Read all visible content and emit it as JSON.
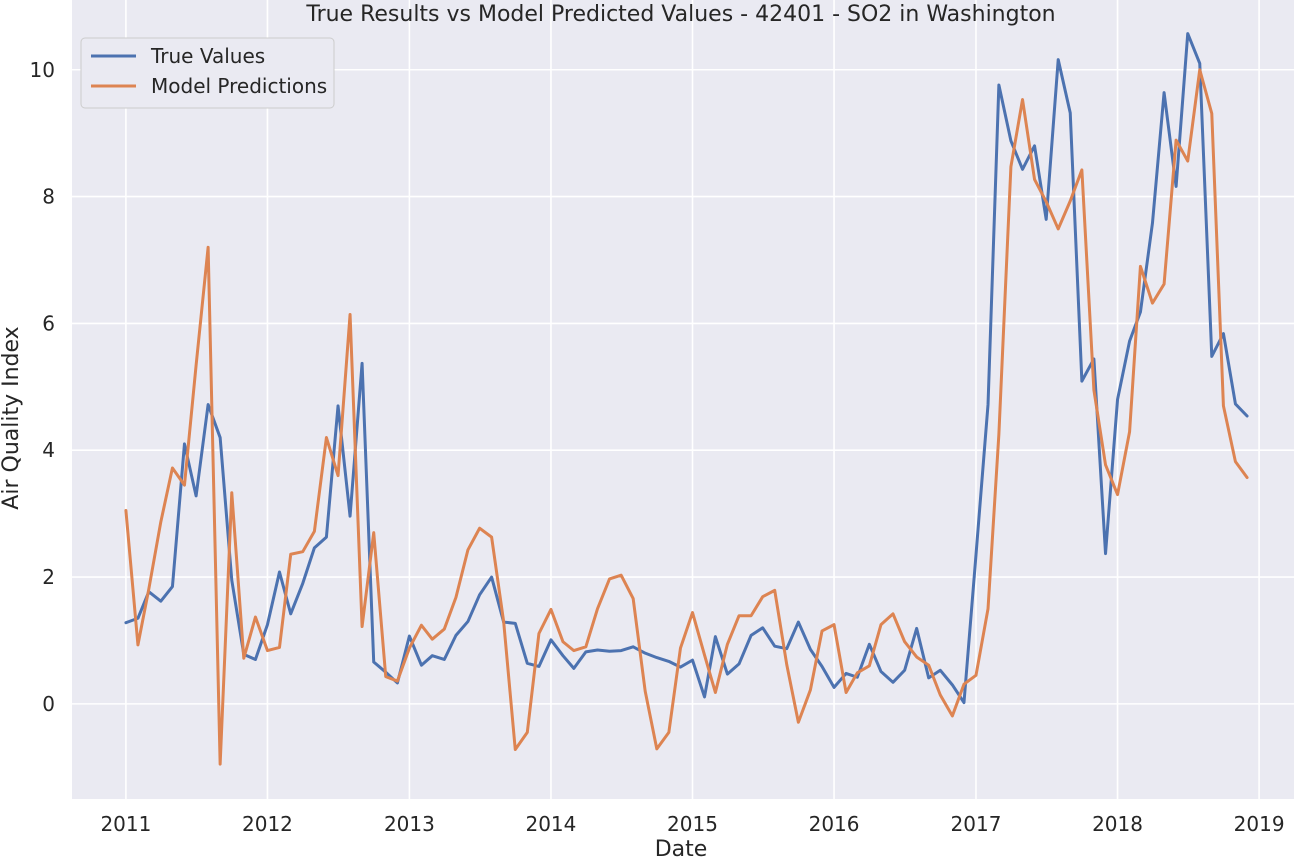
{
  "chart_data": {
    "type": "line",
    "title": "True Results vs Model Predicted Values - 42401 - SO2 in Washington",
    "xlabel": "Date",
    "ylabel": "Air Quality Index",
    "xlim": [
      "2010-08-15",
      "2019-04-01"
    ],
    "ylim": [
      -1.5,
      11.1
    ],
    "x_ticks": [
      "2011",
      "2012",
      "2013",
      "2014",
      "2015",
      "2016",
      "2017",
      "2018",
      "2019"
    ],
    "y_ticks": [
      0,
      2,
      4,
      6,
      8,
      10
    ],
    "grid": true,
    "legend_position": "upper-left",
    "x": [
      "2011-01",
      "2011-02",
      "2011-03",
      "2011-04",
      "2011-05",
      "2011-06",
      "2011-07",
      "2011-08",
      "2011-09",
      "2011-10",
      "2011-11",
      "2011-12",
      "2012-01",
      "2012-02",
      "2012-03",
      "2012-04",
      "2012-05",
      "2012-06",
      "2012-07",
      "2012-08",
      "2012-09",
      "2012-10",
      "2012-11",
      "2012-12",
      "2013-01",
      "2013-02",
      "2013-03",
      "2013-04",
      "2013-05",
      "2013-06",
      "2013-07",
      "2013-08",
      "2013-09",
      "2013-10",
      "2013-11",
      "2013-12",
      "2014-01",
      "2014-02",
      "2014-03",
      "2014-04",
      "2014-05",
      "2014-06",
      "2014-07",
      "2014-08",
      "2014-09",
      "2014-10",
      "2014-11",
      "2014-12",
      "2015-01",
      "2015-02",
      "2015-03",
      "2015-04",
      "2015-05",
      "2015-06",
      "2015-07",
      "2015-08",
      "2015-09",
      "2015-10",
      "2015-11",
      "2015-12",
      "2016-01",
      "2016-02",
      "2016-03",
      "2016-04",
      "2016-05",
      "2016-06",
      "2016-07",
      "2016-08",
      "2016-09",
      "2016-10",
      "2016-11",
      "2016-12",
      "2017-01",
      "2017-02",
      "2017-03",
      "2017-04",
      "2017-05",
      "2017-06",
      "2017-07",
      "2017-08",
      "2017-09",
      "2017-10",
      "2017-11",
      "2017-12",
      "2018-01",
      "2018-02",
      "2018-03",
      "2018-04",
      "2018-05",
      "2018-06",
      "2018-07",
      "2018-08",
      "2018-09",
      "2018-10",
      "2018-11",
      "2018-12"
    ],
    "series": [
      {
        "name": "True Values",
        "color": "#4c72b0",
        "values": [
          1.28,
          1.35,
          1.77,
          1.62,
          1.85,
          4.1,
          3.28,
          4.72,
          4.2,
          1.95,
          0.78,
          0.7,
          1.25,
          2.08,
          1.42,
          1.9,
          2.46,
          2.63,
          4.7,
          2.96,
          5.37,
          0.66,
          0.5,
          0.33,
          1.07,
          0.61,
          0.76,
          0.7,
          1.08,
          1.3,
          1.72,
          2.0,
          1.29,
          1.27,
          0.64,
          0.59,
          1.01,
          0.76,
          0.56,
          0.82,
          0.85,
          0.83,
          0.84,
          0.9,
          0.8,
          0.73,
          0.67,
          0.58,
          0.69,
          0.11,
          1.06,
          0.47,
          0.63,
          1.08,
          1.2,
          0.91,
          0.87,
          1.29,
          0.86,
          0.59,
          0.26,
          0.48,
          0.42,
          0.94,
          0.51,
          0.34,
          0.53,
          1.19,
          0.41,
          0.53,
          0.3,
          0.02,
          2.35,
          4.72,
          9.76,
          8.88,
          8.43,
          8.8,
          7.64,
          10.16,
          9.32,
          5.09,
          5.44,
          2.37,
          4.8,
          5.72,
          6.18,
          7.58,
          9.64,
          8.16,
          10.57,
          10.1,
          5.48,
          5.84,
          4.73,
          4.54
        ]
      },
      {
        "name": "Model Predictions",
        "color": "#dd8452",
        "values": [
          3.05,
          0.93,
          1.81,
          2.87,
          3.72,
          3.45,
          5.34,
          7.2,
          -0.95,
          3.33,
          0.72,
          1.37,
          0.84,
          0.89,
          2.36,
          2.4,
          2.72,
          4.2,
          3.6,
          6.14,
          1.22,
          2.7,
          0.43,
          0.36,
          0.88,
          1.24,
          1.02,
          1.18,
          1.68,
          2.43,
          2.77,
          2.63,
          1.3,
          -0.72,
          -0.45,
          1.11,
          1.49,
          0.98,
          0.84,
          0.9,
          1.5,
          1.97,
          2.03,
          1.66,
          0.2,
          -0.71,
          -0.45,
          0.88,
          1.44,
          0.77,
          0.18,
          0.94,
          1.39,
          1.39,
          1.69,
          1.79,
          0.62,
          -0.29,
          0.22,
          1.15,
          1.25,
          0.18,
          0.49,
          0.6,
          1.25,
          1.42,
          0.98,
          0.74,
          0.61,
          0.14,
          -0.19,
          0.31,
          0.45,
          1.5,
          4.25,
          8.47,
          9.53,
          8.27,
          7.92,
          7.49,
          7.93,
          8.42,
          4.95,
          3.77,
          3.3,
          4.29,
          6.9,
          6.32,
          6.62,
          8.89,
          8.56,
          10.0,
          9.31,
          4.7,
          3.82,
          3.57
        ]
      }
    ]
  }
}
